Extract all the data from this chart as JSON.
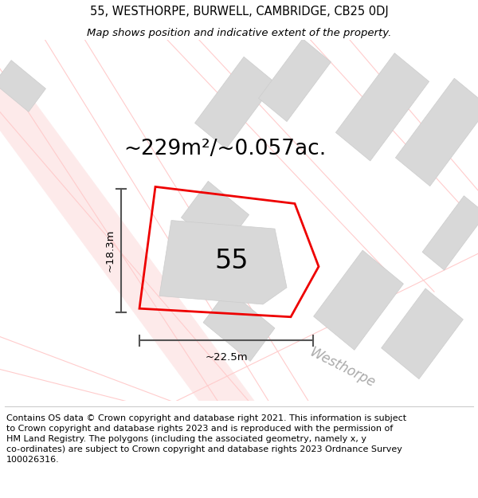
{
  "title": "55, WESTHORPE, BURWELL, CAMBRIDGE, CB25 0DJ",
  "subtitle": "Map shows position and indicative extent of the property.",
  "footer_lines": [
    "Contains OS data © Crown copyright and database right 2021. This information is subject to Crown copyright and database rights 2023 and is reproduced with the permission of",
    "HM Land Registry. The polygons (including the associated geometry, namely x, y",
    "co-ordinates) are subject to Crown copyright and database rights 2023 Ordnance Survey",
    "100026316."
  ],
  "area_label": "~229m²/~0.057ac.",
  "width_label": "~22.5m",
  "height_label": "~18.3m",
  "number_label": "55",
  "road_label": "Westhorpe",
  "road_color": "#ffcccc",
  "building_color": "#d8d8d8",
  "building_outline": "#cccccc",
  "red_color": "#ee0000",
  "gray_dim": "#555555",
  "road_label_color": "#aaaaaa",
  "title_fontsize": 10.5,
  "subtitle_fontsize": 9.5,
  "area_fontsize": 19,
  "number_fontsize": 24,
  "road_fontsize": 12,
  "footer_fontsize": 8,
  "dim_fontsize": 9.5
}
